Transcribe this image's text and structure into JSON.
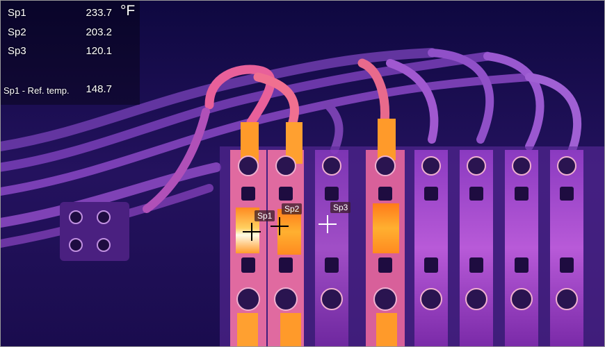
{
  "readouts": {
    "sp1": {
      "label": "Sp1",
      "value": "233.7"
    },
    "sp2": {
      "label": "Sp2",
      "value": "203.2"
    },
    "sp3": {
      "label": "Sp3",
      "value": "120.1"
    },
    "ref": {
      "label": "Sp1 - Ref. temp.",
      "value": "148.7"
    },
    "unit": "°F"
  },
  "spots": {
    "sp1": "Sp1",
    "sp2": "Sp2",
    "sp3": "Sp3"
  },
  "colors": {
    "background": "#1a0c52",
    "hot": "#fff3c0",
    "warm": "#ff9a2a",
    "mid": "#c83cc8",
    "cool": "#5a2a9a"
  }
}
